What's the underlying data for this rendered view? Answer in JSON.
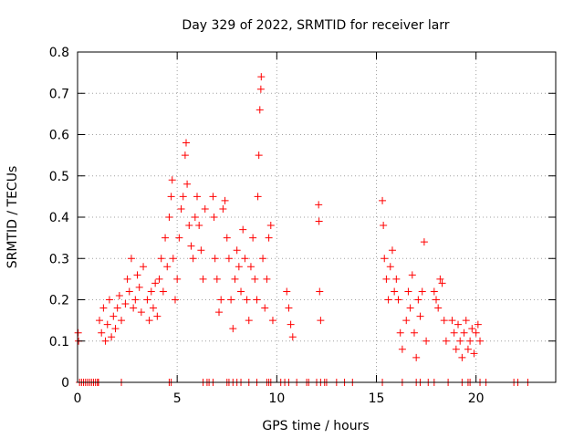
{
  "chart_data": {
    "type": "scatter",
    "title": "Day 329 of 2022, SRMTID for receiver larr",
    "xlabel": "GPS time / hours",
    "ylabel": "SRMTID / TECUs",
    "xlim": [
      0,
      24
    ],
    "ylim": [
      0,
      0.8
    ],
    "grid": true,
    "marker": "plus",
    "color": "#ff0000",
    "x_ticks": [
      0,
      5,
      10,
      15,
      20
    ],
    "x_tick_labels": [
      "0",
      "5",
      "10",
      "15",
      "20"
    ],
    "y_ticks": [
      0,
      0.1,
      0.2,
      0.3,
      0.4,
      0.5,
      0.6,
      0.7,
      0.8
    ],
    "y_tick_labels": [
      "0",
      "0.1",
      "0.2",
      "0.3",
      "0.4",
      "0.5",
      "0.6",
      "0.7",
      "0.8"
    ],
    "series": [
      {
        "name": "SRMTID",
        "points": [
          [
            0.03,
            0.12
          ],
          [
            0.05,
            0.1
          ],
          [
            1.1,
            0.15
          ],
          [
            1.2,
            0.12
          ],
          [
            1.3,
            0.18
          ],
          [
            1.4,
            0.1
          ],
          [
            1.5,
            0.14
          ],
          [
            1.6,
            0.2
          ],
          [
            1.7,
            0.11
          ],
          [
            1.8,
            0.16
          ],
          [
            1.9,
            0.13
          ],
          [
            2.0,
            0.18
          ],
          [
            2.1,
            0.21
          ],
          [
            2.2,
            0.15
          ],
          [
            2.4,
            0.19
          ],
          [
            2.5,
            0.25
          ],
          [
            2.6,
            0.22
          ],
          [
            2.7,
            0.3
          ],
          [
            2.8,
            0.18
          ],
          [
            2.9,
            0.2
          ],
          [
            3.0,
            0.26
          ],
          [
            3.1,
            0.23
          ],
          [
            3.2,
            0.17
          ],
          [
            3.3,
            0.28
          ],
          [
            3.5,
            0.2
          ],
          [
            3.6,
            0.15
          ],
          [
            3.7,
            0.22
          ],
          [
            3.8,
            0.18
          ],
          [
            3.9,
            0.24
          ],
          [
            4.0,
            0.16
          ],
          [
            4.1,
            0.25
          ],
          [
            4.2,
            0.3
          ],
          [
            4.3,
            0.22
          ],
          [
            4.4,
            0.35
          ],
          [
            4.5,
            0.28
          ],
          [
            4.6,
            0.4
          ],
          [
            4.7,
            0.45
          ],
          [
            4.75,
            0.49
          ],
          [
            4.8,
            0.3
          ],
          [
            4.9,
            0.2
          ],
          [
            5.0,
            0.25
          ],
          [
            5.1,
            0.35
          ],
          [
            5.2,
            0.42
          ],
          [
            5.3,
            0.45
          ],
          [
            5.4,
            0.55
          ],
          [
            5.45,
            0.58
          ],
          [
            5.5,
            0.48
          ],
          [
            5.6,
            0.38
          ],
          [
            5.7,
            0.33
          ],
          [
            5.8,
            0.3
          ],
          [
            5.9,
            0.4
          ],
          [
            6.0,
            0.45
          ],
          [
            6.1,
            0.38
          ],
          [
            6.2,
            0.32
          ],
          [
            6.3,
            0.25
          ],
          [
            6.4,
            0.42
          ],
          [
            6.8,
            0.45
          ],
          [
            6.85,
            0.4
          ],
          [
            6.9,
            0.3
          ],
          [
            7.0,
            0.25
          ],
          [
            7.1,
            0.17
          ],
          [
            7.2,
            0.2
          ],
          [
            7.3,
            0.42
          ],
          [
            7.4,
            0.44
          ],
          [
            7.5,
            0.35
          ],
          [
            7.6,
            0.3
          ],
          [
            7.7,
            0.2
          ],
          [
            7.8,
            0.13
          ],
          [
            7.9,
            0.25
          ],
          [
            8.0,
            0.32
          ],
          [
            8.1,
            0.28
          ],
          [
            8.2,
            0.22
          ],
          [
            8.3,
            0.37
          ],
          [
            8.4,
            0.3
          ],
          [
            8.5,
            0.2
          ],
          [
            8.6,
            0.15
          ],
          [
            8.7,
            0.28
          ],
          [
            8.8,
            0.35
          ],
          [
            8.9,
            0.25
          ],
          [
            9.0,
            0.2
          ],
          [
            9.05,
            0.45
          ],
          [
            9.1,
            0.55
          ],
          [
            9.15,
            0.66
          ],
          [
            9.2,
            0.71
          ],
          [
            9.22,
            0.74
          ],
          [
            9.3,
            0.3
          ],
          [
            9.4,
            0.18
          ],
          [
            9.5,
            0.25
          ],
          [
            9.6,
            0.35
          ],
          [
            9.7,
            0.38
          ],
          [
            9.8,
            0.15
          ],
          [
            10.5,
            0.22
          ],
          [
            10.6,
            0.18
          ],
          [
            10.7,
            0.14
          ],
          [
            10.8,
            0.11
          ],
          [
            12.1,
            0.43
          ],
          [
            12.12,
            0.39
          ],
          [
            12.15,
            0.22
          ],
          [
            12.2,
            0.15
          ],
          [
            15.3,
            0.44
          ],
          [
            15.35,
            0.38
          ],
          [
            15.4,
            0.3
          ],
          [
            15.5,
            0.25
          ],
          [
            15.6,
            0.2
          ],
          [
            15.7,
            0.28
          ],
          [
            15.8,
            0.32
          ],
          [
            15.9,
            0.22
          ],
          [
            16.0,
            0.25
          ],
          [
            16.1,
            0.2
          ],
          [
            16.2,
            0.12
          ],
          [
            16.3,
            0.08
          ],
          [
            16.5,
            0.15
          ],
          [
            16.6,
            0.22
          ],
          [
            16.7,
            0.18
          ],
          [
            16.8,
            0.26
          ],
          [
            16.9,
            0.12
          ],
          [
            17.0,
            0.06
          ],
          [
            17.1,
            0.2
          ],
          [
            17.2,
            0.16
          ],
          [
            17.3,
            0.22
          ],
          [
            17.4,
            0.34
          ],
          [
            17.5,
            0.1
          ],
          [
            17.9,
            0.22
          ],
          [
            18.0,
            0.2
          ],
          [
            18.1,
            0.18
          ],
          [
            18.2,
            0.25
          ],
          [
            18.3,
            0.24
          ],
          [
            18.4,
            0.15
          ],
          [
            18.5,
            0.1
          ],
          [
            18.8,
            0.15
          ],
          [
            18.9,
            0.12
          ],
          [
            19.0,
            0.08
          ],
          [
            19.1,
            0.14
          ],
          [
            19.2,
            0.1
          ],
          [
            19.3,
            0.06
          ],
          [
            19.4,
            0.12
          ],
          [
            19.5,
            0.15
          ],
          [
            19.6,
            0.08
          ],
          [
            19.7,
            0.1
          ],
          [
            19.8,
            0.13
          ],
          [
            19.9,
            0.07
          ],
          [
            20.0,
            0.12
          ],
          [
            20.1,
            0.14
          ],
          [
            20.2,
            0.1
          ]
        ]
      }
    ],
    "zero_points_x": [
      0.1,
      0.2,
      0.3,
      0.4,
      0.5,
      0.6,
      0.7,
      0.8,
      0.9,
      1.0,
      1.05,
      2.2,
      4.6,
      4.7,
      6.3,
      6.5,
      6.6,
      6.8,
      7.5,
      7.6,
      7.8,
      8.0,
      8.2,
      8.6,
      9.0,
      9.5,
      9.6,
      9.7,
      10.2,
      10.4,
      10.6,
      11.0,
      11.5,
      11.6,
      12.0,
      12.2,
      12.4,
      12.5,
      13.0,
      13.4,
      13.8,
      15.3,
      16.3,
      17.0,
      17.2,
      17.6,
      17.9,
      18.6,
      19.3,
      19.6,
      19.7,
      20.2,
      20.5,
      21.9,
      22.1,
      22.6
    ]
  }
}
